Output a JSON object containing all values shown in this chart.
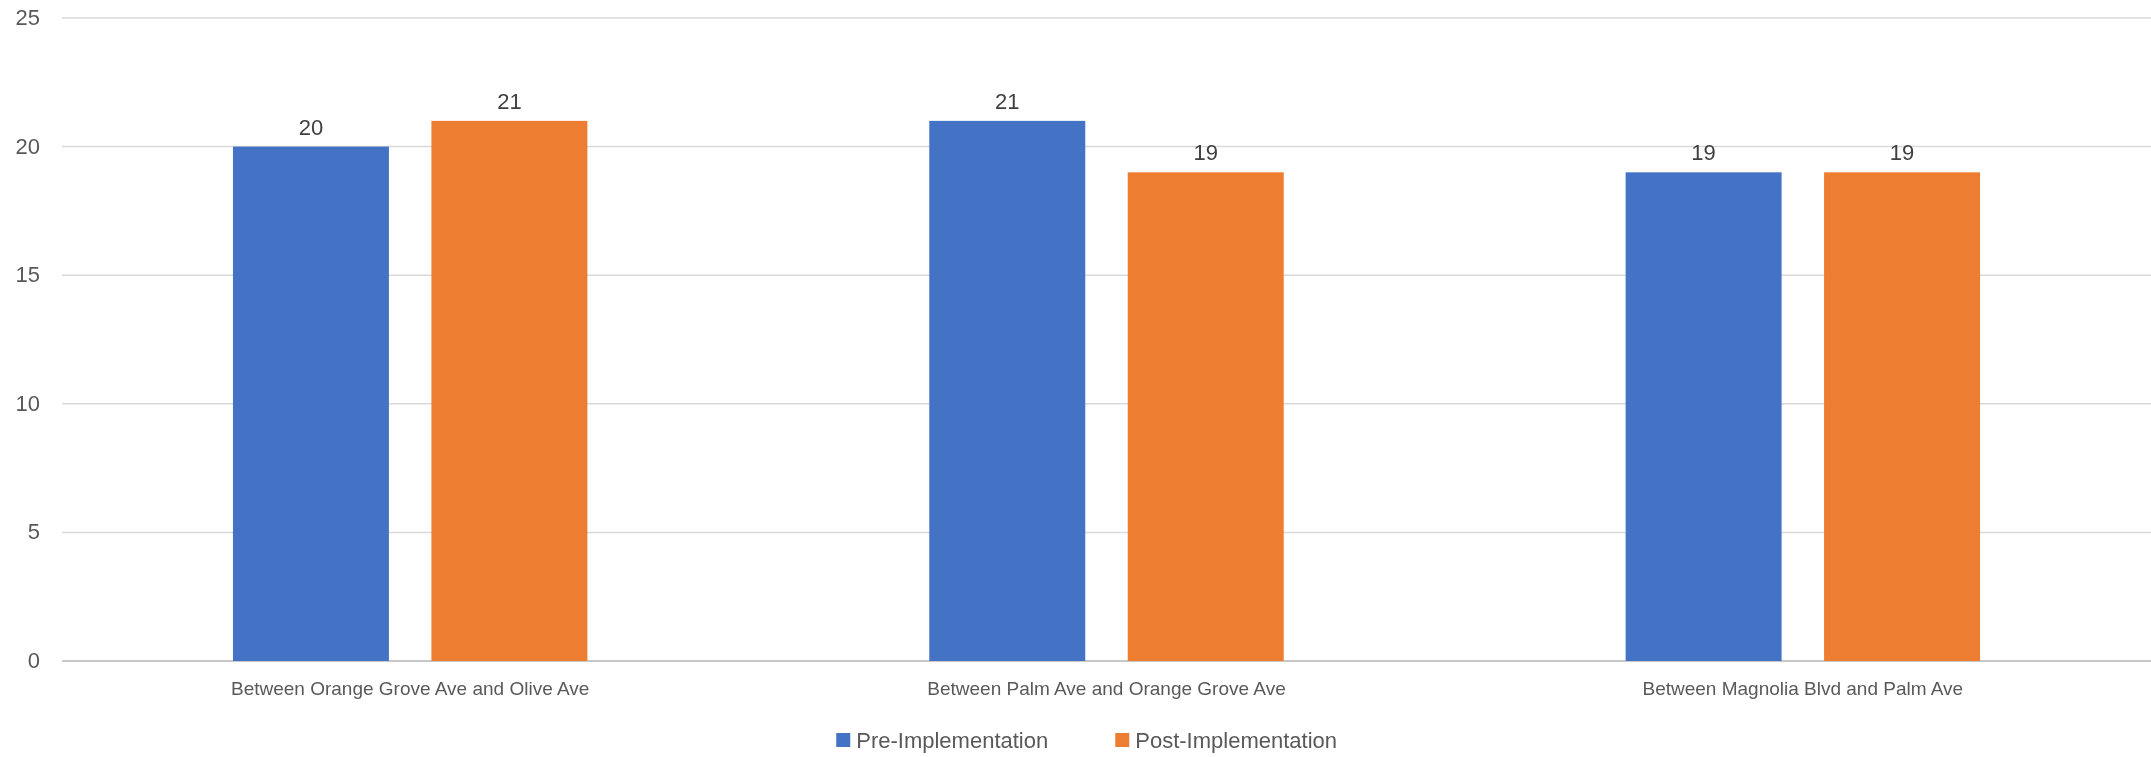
{
  "chart_data": {
    "type": "bar",
    "categories": [
      "Between Orange Grove Ave and Olive Ave",
      "Between Palm Ave and Orange Grove Ave",
      "Between Magnolia Blvd and Palm Ave"
    ],
    "series": [
      {
        "name": "Pre-Implementation",
        "color": "#4472c4",
        "values": [
          20,
          21,
          19
        ]
      },
      {
        "name": "Post-Implementation",
        "color": "#ed7d31",
        "values": [
          21,
          19,
          19
        ]
      }
    ],
    "ylim": [
      0,
      25
    ],
    "yticks": [
      0,
      5,
      10,
      15,
      20,
      25
    ],
    "grid": "y",
    "legend": "bottom",
    "data_labels": true
  }
}
